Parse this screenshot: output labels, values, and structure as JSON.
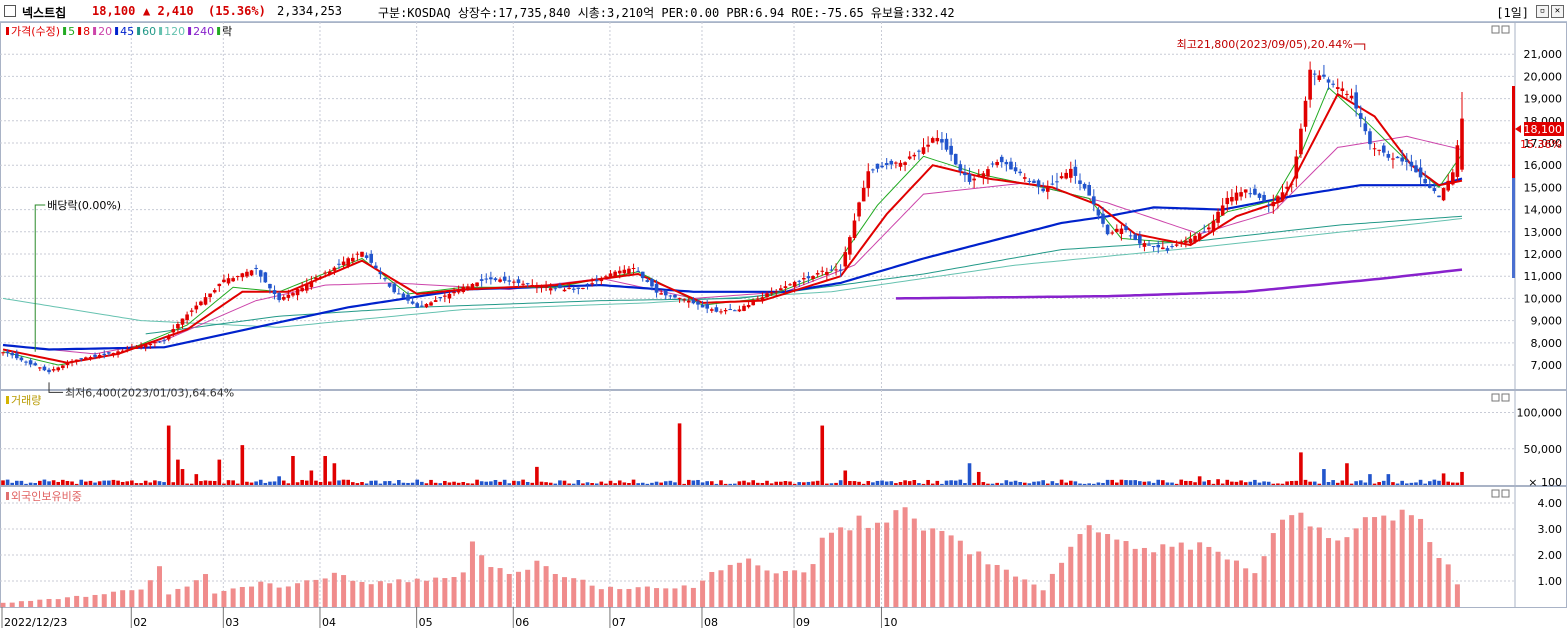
{
  "header": {
    "name": "넥스트칩",
    "price": "18,100",
    "change": "▲ 2,410",
    "change_pct": "(15.36%)",
    "volume": "2,334,253",
    "info": "구분:KOSDAQ 상장수:17,735,840 시총:3,210억 PER:0.00 PBR:6.94 ROE:-75.65 유보율:332.42",
    "period": "[1일]",
    "restore_icon": "restore-icon",
    "close_icon": "close-icon"
  },
  "colors": {
    "up": "#e00000",
    "down": "#2255cc",
    "ma5": "#22aa22",
    "ma8": "#e00000",
    "ma20": "#cc44aa",
    "ma45": "#0022cc",
    "ma60": "#229988",
    "ma120": "#66c2b0",
    "ma240": "#8822cc",
    "foreign": "#f08c8c",
    "grid": "#c8cbd6"
  },
  "chart_data": [
    {
      "type": "candlestick",
      "legend": [
        "가격(수정)",
        "5",
        "8",
        "20",
        "45",
        "60",
        "120",
        "240",
        "락"
      ],
      "y_ticks": [
        "21,000",
        "20,000",
        "19,000",
        "18,000",
        "17,000",
        "16,000",
        "15,000",
        "14,000",
        "13,000",
        "12,000",
        "11,000",
        "10,000",
        "9,000",
        "8,000",
        "7,000"
      ],
      "ylim": [
        6100,
        22000
      ],
      "x_ticks": [
        "2022/12/23",
        "02",
        "03",
        "04",
        "05",
        "06",
        "07",
        "08",
        "09",
        "10"
      ],
      "annotations": {
        "high": "최고21,800(2023/09/05),20.44%",
        "low": "최저6,400(2023/01/03),64.64%",
        "dividend": "배당락(0.00%)",
        "last_price": "18,100",
        "last_pct": "15.36%"
      },
      "price_anchors": [
        [
          0,
          7600
        ],
        [
          10,
          6700
        ],
        [
          15,
          7200
        ],
        [
          25,
          7600
        ],
        [
          35,
          8100
        ],
        [
          40,
          9300
        ],
        [
          48,
          10800
        ],
        [
          55,
          11300
        ],
        [
          60,
          9900
        ],
        [
          65,
          10500
        ],
        [
          72,
          11400
        ],
        [
          78,
          12100
        ],
        [
          85,
          10300
        ],
        [
          90,
          9600
        ],
        [
          98,
          10300
        ],
        [
          105,
          10900
        ],
        [
          110,
          10800
        ],
        [
          118,
          10500
        ],
        [
          125,
          10400
        ],
        [
          132,
          11100
        ],
        [
          137,
          11400
        ],
        [
          142,
          10300
        ],
        [
          150,
          9800
        ],
        [
          155,
          9400
        ],
        [
          160,
          9500
        ],
        [
          165,
          10100
        ],
        [
          172,
          10700
        ],
        [
          178,
          11200
        ],
        [
          182,
          11300
        ],
        [
          188,
          15800
        ],
        [
          196,
          16200
        ],
        [
          203,
          17300
        ],
        [
          210,
          15200
        ],
        [
          216,
          16200
        ],
        [
          222,
          15500
        ],
        [
          226,
          14800
        ],
        [
          232,
          15800
        ],
        [
          236,
          14600
        ],
        [
          240,
          12900
        ],
        [
          243,
          13200
        ],
        [
          247,
          12500
        ],
        [
          253,
          12200
        ],
        [
          258,
          12700
        ],
        [
          262,
          13200
        ],
        [
          266,
          14500
        ],
        [
          270,
          14900
        ],
        [
          275,
          14200
        ],
        [
          280,
          15200
        ],
        [
          284,
          20200
        ],
        [
          290,
          19600
        ],
        [
          293,
          19100
        ],
        [
          297,
          16900
        ],
        [
          301,
          16400
        ],
        [
          305,
          16200
        ],
        [
          309,
          15200
        ],
        [
          312,
          14600
        ],
        [
          315,
          15700
        ],
        [
          317,
          18100
        ]
      ],
      "ma5_anchors": [
        [
          0,
          7600
        ],
        [
          12,
          7000
        ],
        [
          25,
          7500
        ],
        [
          40,
          8800
        ],
        [
          50,
          10500
        ],
        [
          60,
          10300
        ],
        [
          78,
          11800
        ],
        [
          88,
          10200
        ],
        [
          100,
          10500
        ],
        [
          120,
          10500
        ],
        [
          138,
          11200
        ],
        [
          152,
          9700
        ],
        [
          165,
          10000
        ],
        [
          180,
          11200
        ],
        [
          190,
          14200
        ],
        [
          200,
          16400
        ],
        [
          212,
          15600
        ],
        [
          226,
          15000
        ],
        [
          236,
          14500
        ],
        [
          243,
          12700
        ],
        [
          256,
          12500
        ],
        [
          266,
          13900
        ],
        [
          276,
          14400
        ],
        [
          282,
          16500
        ],
        [
          288,
          19500
        ],
        [
          296,
          18000
        ],
        [
          305,
          16200
        ],
        [
          312,
          15000
        ],
        [
          317,
          16500
        ]
      ],
      "ma8_anchors": [
        [
          0,
          7700
        ],
        [
          14,
          7100
        ],
        [
          25,
          7500
        ],
        [
          40,
          8600
        ],
        [
          52,
          10300
        ],
        [
          62,
          10300
        ],
        [
          78,
          11700
        ],
        [
          90,
          10200
        ],
        [
          100,
          10400
        ],
        [
          120,
          10600
        ],
        [
          138,
          11100
        ],
        [
          152,
          9800
        ],
        [
          165,
          9900
        ],
        [
          182,
          11000
        ],
        [
          192,
          13800
        ],
        [
          202,
          16000
        ],
        [
          214,
          15400
        ],
        [
          228,
          15000
        ],
        [
          238,
          14200
        ],
        [
          246,
          12900
        ],
        [
          258,
          12400
        ],
        [
          268,
          13700
        ],
        [
          278,
          14400
        ],
        [
          285,
          17200
        ],
        [
          290,
          19200
        ],
        [
          298,
          18200
        ],
        [
          306,
          16000
        ],
        [
          312,
          15100
        ],
        [
          317,
          15300
        ]
      ],
      "ma20_anchors": [
        [
          0,
          7900
        ],
        [
          20,
          7500
        ],
        [
          35,
          8100
        ],
        [
          55,
          9900
        ],
        [
          70,
          10600
        ],
        [
          85,
          10700
        ],
        [
          110,
          10400
        ],
        [
          130,
          10900
        ],
        [
          150,
          10000
        ],
        [
          170,
          10300
        ],
        [
          185,
          11500
        ],
        [
          200,
          14700
        ],
        [
          222,
          15200
        ],
        [
          240,
          14300
        ],
        [
          260,
          12900
        ],
        [
          276,
          13900
        ],
        [
          290,
          16800
        ],
        [
          305,
          17300
        ],
        [
          317,
          16700
        ]
      ],
      "ma45_anchors": [
        [
          0,
          7900
        ],
        [
          10,
          7700
        ],
        [
          35,
          7800
        ],
        [
          55,
          8700
        ],
        [
          75,
          9600
        ],
        [
          100,
          10400
        ],
        [
          130,
          10600
        ],
        [
          150,
          10300
        ],
        [
          170,
          10300
        ],
        [
          182,
          10700
        ],
        [
          200,
          11800
        ],
        [
          215,
          12600
        ],
        [
          230,
          13400
        ],
        [
          240,
          13700
        ],
        [
          250,
          14100
        ],
        [
          265,
          14000
        ],
        [
          280,
          14600
        ],
        [
          295,
          15100
        ],
        [
          312,
          15100
        ],
        [
          317,
          15400
        ]
      ],
      "ma60_anchors": [
        [
          31,
          8400
        ],
        [
          60,
          9200
        ],
        [
          90,
          9600
        ],
        [
          130,
          9900
        ],
        [
          160,
          10000
        ],
        [
          200,
          11100
        ],
        [
          230,
          12200
        ],
        [
          260,
          12600
        ],
        [
          290,
          13300
        ],
        [
          317,
          13700
        ]
      ],
      "ma120_anchors": [
        [
          0,
          10000
        ],
        [
          30,
          9000
        ],
        [
          60,
          8700
        ],
        [
          100,
          9500
        ],
        [
          140,
          9800
        ],
        [
          180,
          10300
        ],
        [
          220,
          11500
        ],
        [
          260,
          12300
        ],
        [
          300,
          13200
        ],
        [
          317,
          13600
        ]
      ],
      "ma240_anchors": [
        [
          194,
          10000
        ],
        [
          240,
          10100
        ],
        [
          270,
          10300
        ],
        [
          300,
          10900
        ],
        [
          317,
          11300
        ]
      ]
    },
    {
      "type": "bar",
      "name": "거래량",
      "y_ticks": [
        "100,000",
        "50,000",
        "× 100"
      ],
      "ylim": [
        0,
        120000
      ],
      "spikes": [
        [
          36,
          82000
        ],
        [
          38,
          35000
        ],
        [
          39,
          22000
        ],
        [
          42,
          15000
        ],
        [
          47,
          35000
        ],
        [
          52,
          55000
        ],
        [
          60,
          12000
        ],
        [
          63,
          40000
        ],
        [
          67,
          20000
        ],
        [
          70,
          40000
        ],
        [
          72,
          30000
        ],
        [
          116,
          25000
        ],
        [
          147,
          85000
        ],
        [
          178,
          82000
        ],
        [
          183,
          20000
        ],
        [
          210,
          30000
        ],
        [
          212,
          18000
        ],
        [
          260,
          12000
        ],
        [
          264,
          8000
        ],
        [
          282,
          45000
        ],
        [
          287,
          22000
        ],
        [
          292,
          30000
        ],
        [
          297,
          15000
        ],
        [
          301,
          15000
        ],
        [
          313,
          16000
        ],
        [
          317,
          18000
        ]
      ]
    },
    {
      "type": "bar",
      "name": "외국인보유비중",
      "y_ticks": [
        "4.00",
        "3.00",
        "2.00",
        "1.00"
      ],
      "ylim": [
        0,
        4.5
      ],
      "anchors": [
        [
          0,
          0.15
        ],
        [
          10,
          0.3
        ],
        [
          20,
          0.45
        ],
        [
          30,
          0.7
        ],
        [
          34,
          1.5
        ],
        [
          36,
          0.45
        ],
        [
          42,
          1.0
        ],
        [
          43,
          1.9
        ],
        [
          45,
          0.5
        ],
        [
          55,
          0.9
        ],
        [
          62,
          0.8
        ],
        [
          72,
          1.2
        ],
        [
          80,
          0.9
        ],
        [
          95,
          1.1
        ],
        [
          100,
          1.3
        ],
        [
          102,
          2.3
        ],
        [
          106,
          1.4
        ],
        [
          112,
          1.3
        ],
        [
          117,
          1.9
        ],
        [
          120,
          1.3
        ],
        [
          130,
          0.75
        ],
        [
          150,
          0.8
        ],
        [
          155,
          1.5
        ],
        [
          162,
          1.7
        ],
        [
          168,
          1.3
        ],
        [
          175,
          1.5
        ],
        [
          178,
          2.5
        ],
        [
          181,
          3.4
        ],
        [
          185,
          3.2
        ],
        [
          190,
          3.3
        ],
        [
          194,
          3.8
        ],
        [
          198,
          3.4
        ],
        [
          210,
          2.2
        ],
        [
          215,
          1.6
        ],
        [
          222,
          1.1
        ],
        [
          226,
          0.6
        ],
        [
          230,
          1.8
        ],
        [
          234,
          3.1
        ],
        [
          240,
          2.6
        ],
        [
          245,
          2.5
        ],
        [
          252,
          2.2
        ],
        [
          256,
          2.6
        ],
        [
          262,
          2.1
        ],
        [
          268,
          1.8
        ],
        [
          273,
          1.2
        ],
        [
          276,
          3.1
        ],
        [
          280,
          3.6
        ],
        [
          284,
          3.2
        ],
        [
          290,
          2.7
        ],
        [
          295,
          3.3
        ],
        [
          300,
          3.3
        ],
        [
          304,
          3.6
        ],
        [
          308,
          3.3
        ],
        [
          311,
          2.1
        ],
        [
          314,
          1.5
        ],
        [
          317,
          0.7
        ]
      ]
    }
  ]
}
